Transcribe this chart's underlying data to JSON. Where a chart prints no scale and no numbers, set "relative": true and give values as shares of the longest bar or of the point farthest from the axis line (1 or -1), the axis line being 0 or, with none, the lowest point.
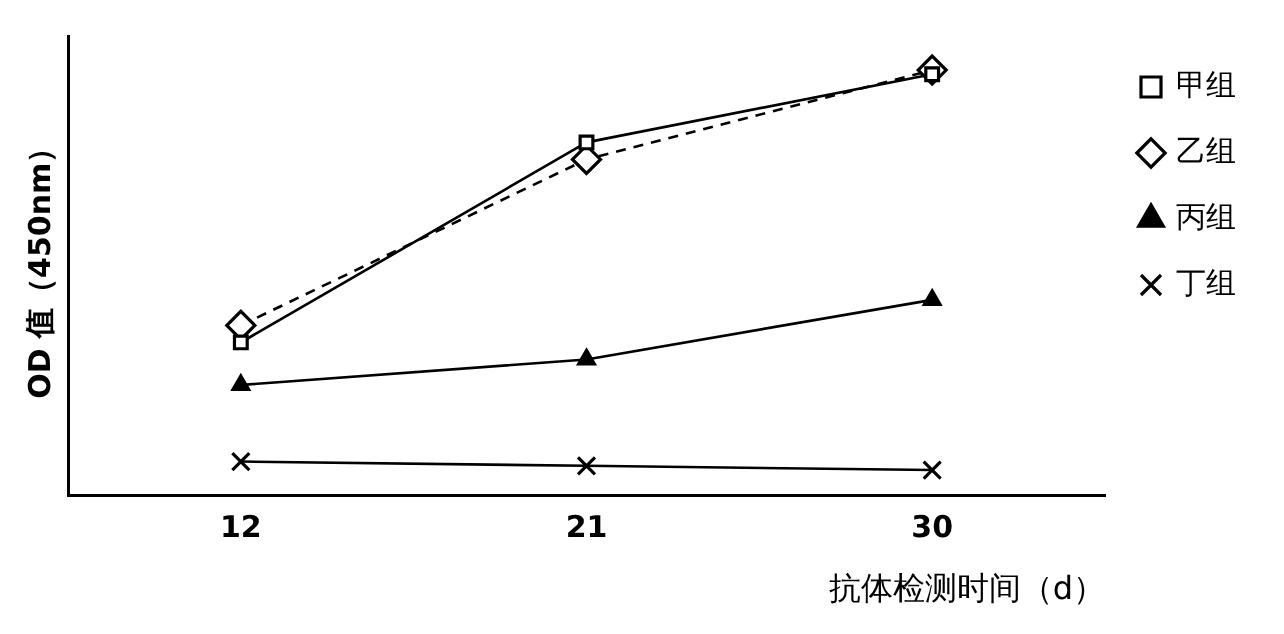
{
  "chart_data": {
    "type": "line",
    "relative": true,
    "xlabel": "抗体检测时间（d）",
    "ylabel": "OD 值（450nm）",
    "categories": [
      "12",
      "21",
      "30"
    ],
    "legend": "right",
    "grid": false,
    "series": [
      {
        "name": "甲组",
        "color": "#000000",
        "marker": "square",
        "line_style": "solid",
        "values": [
          0.36,
          0.83,
          0.99
        ]
      },
      {
        "name": "乙组",
        "color": "#000000",
        "marker": "diamond",
        "line_style": "dashed",
        "values": [
          0.4,
          0.79,
          1.0
        ]
      },
      {
        "name": "丙组",
        "color": "#000000",
        "marker": "triangle",
        "line_style": "solid",
        "values": [
          0.26,
          0.32,
          0.46
        ]
      },
      {
        "name": "丁组",
        "color": "#000000",
        "marker": "cross",
        "line_style": "solid",
        "values": [
          0.08,
          0.07,
          0.06
        ]
      }
    ]
  }
}
